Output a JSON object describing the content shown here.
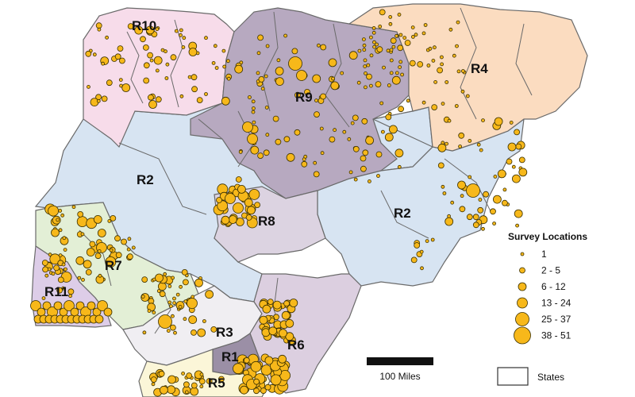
{
  "map": {
    "region_labels": [
      "R1",
      "R2",
      "R2",
      "R3",
      "R4",
      "R5",
      "R6",
      "R7",
      "R8",
      "R9",
      "R10",
      "R11"
    ],
    "region_colors": {
      "R1": "#9b8fa6",
      "R2": "#d7e4f2",
      "R3": "#f0eef2",
      "R4": "#fbdcc0",
      "R5": "#fbf6d8",
      "R6": "#dccfe0",
      "R7": "#e3efd6",
      "R8": "#dcd3e1",
      "R9": "#b7a9c0",
      "R10": "#f7dcea",
      "R11": "#ddcde8"
    },
    "dot_color": "#f7b81a"
  },
  "legend": {
    "title": "Survey Locations",
    "classes": [
      "1",
      "2 - 5",
      "6 - 12",
      "13 - 24",
      "25 - 37",
      "38 - 51"
    ],
    "states_label": "States"
  },
  "scale_bar": {
    "label": "100 Miles"
  }
}
